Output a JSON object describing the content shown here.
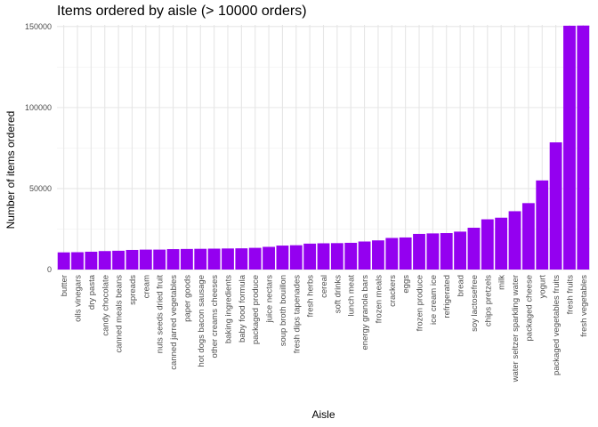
{
  "chart_data": {
    "type": "bar",
    "title": "Items ordered by aisle (> 10000 orders)",
    "xlabel": "Aisle",
    "ylabel": "Number of items ordered",
    "ylim": [
      0,
      151000
    ],
    "yticks": [
      0,
      50000,
      100000,
      150000
    ],
    "grid": true,
    "bar_color": "#9400f0",
    "categories": [
      "butter",
      "oils vinegars",
      "dry pasta",
      "candy chocolate",
      "canned meals beans",
      "spreads",
      "cream",
      "nuts seeds dried fruit",
      "canned jarred vegetables",
      "paper goods",
      "hot dogs bacon sausage",
      "other creams cheeses",
      "baking ingredients",
      "baby food formula",
      "packaged produce",
      "juice nectars",
      "soup broth bouillon",
      "fresh dips tapenades",
      "fresh herbs",
      "cereal",
      "soft drinks",
      "lunch meat",
      "energy granola bars",
      "frozen meals",
      "crackers",
      "eggs",
      "frozen produce",
      "ice cream ice",
      "refrigerated",
      "bread",
      "soy lactosefree",
      "chips pretzels",
      "milk",
      "water seltzer sparkling water",
      "packaged cheese",
      "yogurt",
      "packaged vegetables fruits",
      "fresh fruits",
      "fresh vegetables"
    ],
    "values": [
      10600,
      10700,
      11000,
      11400,
      11600,
      12100,
      12300,
      12300,
      12600,
      12700,
      12800,
      12900,
      13000,
      13100,
      13400,
      14000,
      14800,
      15000,
      16000,
      16200,
      16300,
      16500,
      17300,
      18000,
      19500,
      19800,
      22000,
      22300,
      22500,
      23400,
      25800,
      31000,
      32000,
      36000,
      41000,
      55000,
      78500,
      150500,
      150600
    ]
  }
}
